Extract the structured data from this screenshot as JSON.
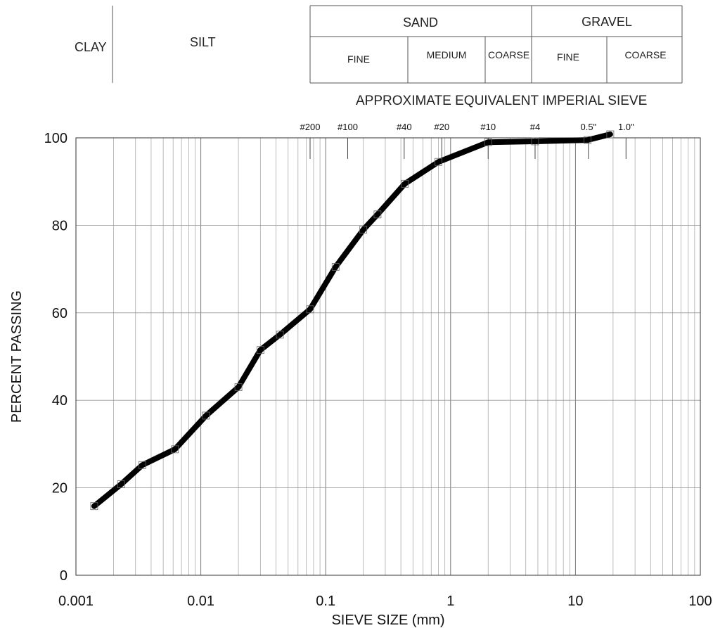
{
  "classification": {
    "clay": "CLAY",
    "silt": "SILT",
    "sand": {
      "label": "SAND",
      "fine": "FINE",
      "medium": "MEDIUM",
      "coarse": "COARSE"
    },
    "gravel": {
      "label": "GRAVEL",
      "fine": "FINE",
      "coarse": "COARSE"
    }
  },
  "chart_data": {
    "type": "line",
    "title": "",
    "xlabel": "SIEVE SIZE (mm)",
    "ylabel": "PERCENT PASSING",
    "secondary_axis_label": "APPROXIMATE EQUIVALENT IMPERIAL SIEVE",
    "x_scale": "log",
    "xlim": [
      0.001,
      100
    ],
    "ylim": [
      0,
      100
    ],
    "grid": true,
    "x_ticks": [
      0.001,
      0.01,
      0.1,
      1,
      10,
      100
    ],
    "x_tick_labels": [
      "0.001",
      "0.01",
      "0.1",
      "1",
      "10",
      "100"
    ],
    "y_ticks": [
      0,
      20,
      40,
      60,
      80,
      100
    ],
    "y_tick_labels": [
      "0",
      "20",
      "40",
      "60",
      "80",
      "100"
    ],
    "sieves": [
      {
        "label": "#200",
        "size": 0.075
      },
      {
        "label": "#100",
        "size": 0.15
      },
      {
        "label": "#40",
        "size": 0.425
      },
      {
        "label": "#20",
        "size": 0.85
      },
      {
        "label": "#10",
        "size": 2.0
      },
      {
        "label": "#4",
        "size": 4.75
      },
      {
        "label": "0.5\"",
        "size": 12.7
      },
      {
        "label": "1.0\"",
        "size": 25.4
      }
    ],
    "series": [
      {
        "color": "#000000",
        "x": [
          0.0014,
          0.0023,
          0.0034,
          0.0062,
          0.011,
          0.02,
          0.03,
          0.043,
          0.075,
          0.12,
          0.2,
          0.26,
          0.43,
          0.8,
          2.0,
          4.75,
          12.5,
          19.0
        ],
        "y": [
          15.8,
          20.8,
          25.2,
          28.8,
          36.5,
          43.0,
          51.5,
          55.0,
          60.8,
          70.5,
          79.0,
          82.5,
          89.5,
          94.5,
          99.0,
          99.2,
          99.5,
          100.8
        ]
      }
    ]
  }
}
